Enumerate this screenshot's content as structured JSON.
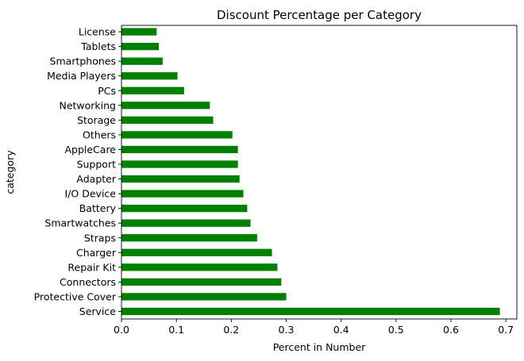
{
  "chart_data": {
    "type": "bar",
    "orientation": "horizontal",
    "title": "Discount Percentage per Category",
    "xlabel": "Percent in Number",
    "ylabel": "category",
    "xlim": [
      0,
      0.72
    ],
    "xticks": [
      0.0,
      0.1,
      0.2,
      0.3,
      0.4,
      0.5,
      0.6,
      0.7
    ],
    "xtick_labels": [
      "0.0",
      "0.1",
      "0.2",
      "0.3",
      "0.4",
      "0.5",
      "0.6",
      "0.7"
    ],
    "bar_color": "#008000",
    "grid": false,
    "legend": "none",
    "categories": [
      "Service",
      "Protective Cover",
      "Connectors",
      "Repair Kit",
      "Charger",
      "Straps",
      "Smartwatches",
      "Battery",
      "I/O Device",
      "Adapter",
      "Support",
      "AppleCare",
      "Others",
      "Storage",
      "Networking",
      "PCs",
      "Media Players",
      "Smartphones",
      "Tablets",
      "License"
    ],
    "values": [
      0.689,
      0.3,
      0.291,
      0.284,
      0.274,
      0.247,
      0.235,
      0.229,
      0.222,
      0.215,
      0.212,
      0.212,
      0.202,
      0.167,
      0.161,
      0.114,
      0.102,
      0.075,
      0.068,
      0.064
    ]
  }
}
